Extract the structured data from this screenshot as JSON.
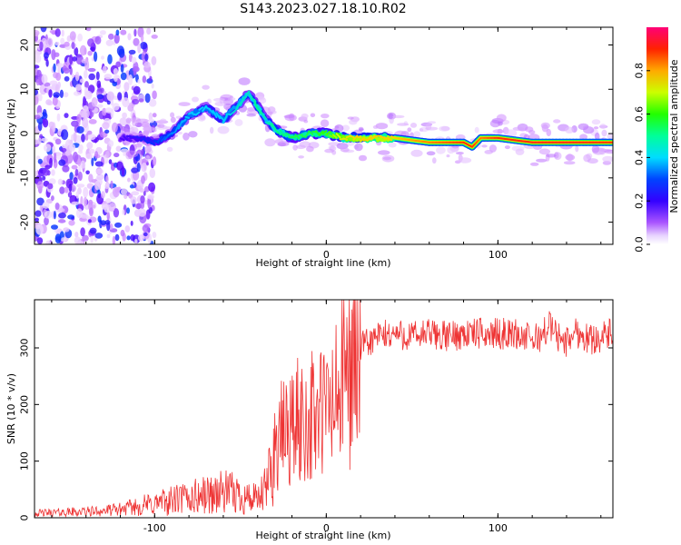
{
  "title": "S143.2023.027.18.10.R02",
  "chart_data": [
    {
      "type": "heatmap",
      "xlabel": "Height of straight line (km)",
      "ylabel": "Frequency (Hz)",
      "xlim": [
        -170,
        167
      ],
      "ylim": [
        -25,
        24
      ],
      "x_ticks": [
        -100,
        0,
        100
      ],
      "x_tick_labels": [
        "-100",
        "0",
        "100"
      ],
      "y_ticks": [
        -20,
        -10,
        0,
        10,
        20
      ],
      "y_tick_labels": [
        "-20",
        "-10",
        "0",
        "10",
        "20"
      ],
      "colorbar": {
        "label": "Normalized spectral amplitude",
        "range": [
          0,
          1
        ],
        "ticks": [
          0.0,
          0.2,
          0.4,
          0.6,
          0.8
        ],
        "tick_labels": [
          "0.0",
          "0.2",
          "0.4",
          "0.6",
          "0.8"
        ],
        "colors": [
          "#ffffff",
          "#cc88ff",
          "#5500ff",
          "#0033ff",
          "#00ccff",
          "#00ff88",
          "#33ff00",
          "#ccff00",
          "#ffcc00",
          "#ff3300",
          "#ff0066"
        ]
      },
      "ridge": {
        "x": [
          -120,
          -110,
          -100,
          -90,
          -80,
          -70,
          -60,
          -50,
          -45,
          -40,
          -35,
          -30,
          -25,
          -20,
          -10,
          0,
          10,
          20,
          40,
          60,
          80,
          85,
          90,
          100,
          120,
          140,
          167
        ],
        "y": [
          -1,
          -1,
          -2,
          0,
          4,
          6,
          3,
          7,
          9,
          6,
          3,
          1,
          0,
          -1,
          0,
          0,
          -1,
          -1,
          -1,
          -2,
          -2,
          -3,
          -1,
          -1,
          -2,
          -2,
          -2
        ],
        "amplitude": [
          0.2,
          0.25,
          0.3,
          0.35,
          0.4,
          0.4,
          0.4,
          0.45,
          0.45,
          0.5,
          0.45,
          0.5,
          0.5,
          0.55,
          0.55,
          0.6,
          0.75,
          0.8,
          0.8,
          0.85,
          0.9,
          0.9,
          0.85,
          0.9,
          0.92,
          0.92,
          0.9
        ]
      },
      "noise_region_x": [
        -170,
        -110
      ]
    },
    {
      "type": "line",
      "xlabel": "Height of straight line (km)",
      "ylabel": "SNR (10 * v/v)",
      "xlim": [
        -170,
        167
      ],
      "ylim": [
        0,
        385
      ],
      "x_ticks": [
        -100,
        0,
        100
      ],
      "x_tick_labels": [
        "-100",
        "0",
        "100"
      ],
      "y_ticks": [
        0,
        100,
        200,
        300
      ],
      "y_tick_labels": [
        "0",
        "100",
        "200",
        "300"
      ],
      "color": "#ee3333",
      "x": [
        -170,
        -150,
        -130,
        -120,
        -110,
        -100,
        -90,
        -80,
        -70,
        -60,
        -50,
        -40,
        -35,
        -30,
        -25,
        -20,
        -15,
        -10,
        -5,
        0,
        5,
        10,
        15,
        20,
        25,
        30,
        40,
        50,
        60,
        70,
        80,
        90,
        100,
        110,
        115,
        120,
        125,
        130,
        135,
        140,
        145,
        150,
        155,
        160,
        167
      ],
      "y": [
        8,
        10,
        12,
        15,
        20,
        25,
        30,
        35,
        40,
        45,
        40,
        30,
        50,
        120,
        150,
        160,
        170,
        175,
        180,
        190,
        200,
        250,
        280,
        300,
        310,
        320,
        325,
        320,
        325,
        320,
        325,
        325,
        325,
        325,
        320,
        315,
        320,
        340,
        320,
        310,
        330,
        320,
        315,
        320,
        325
      ]
    }
  ]
}
